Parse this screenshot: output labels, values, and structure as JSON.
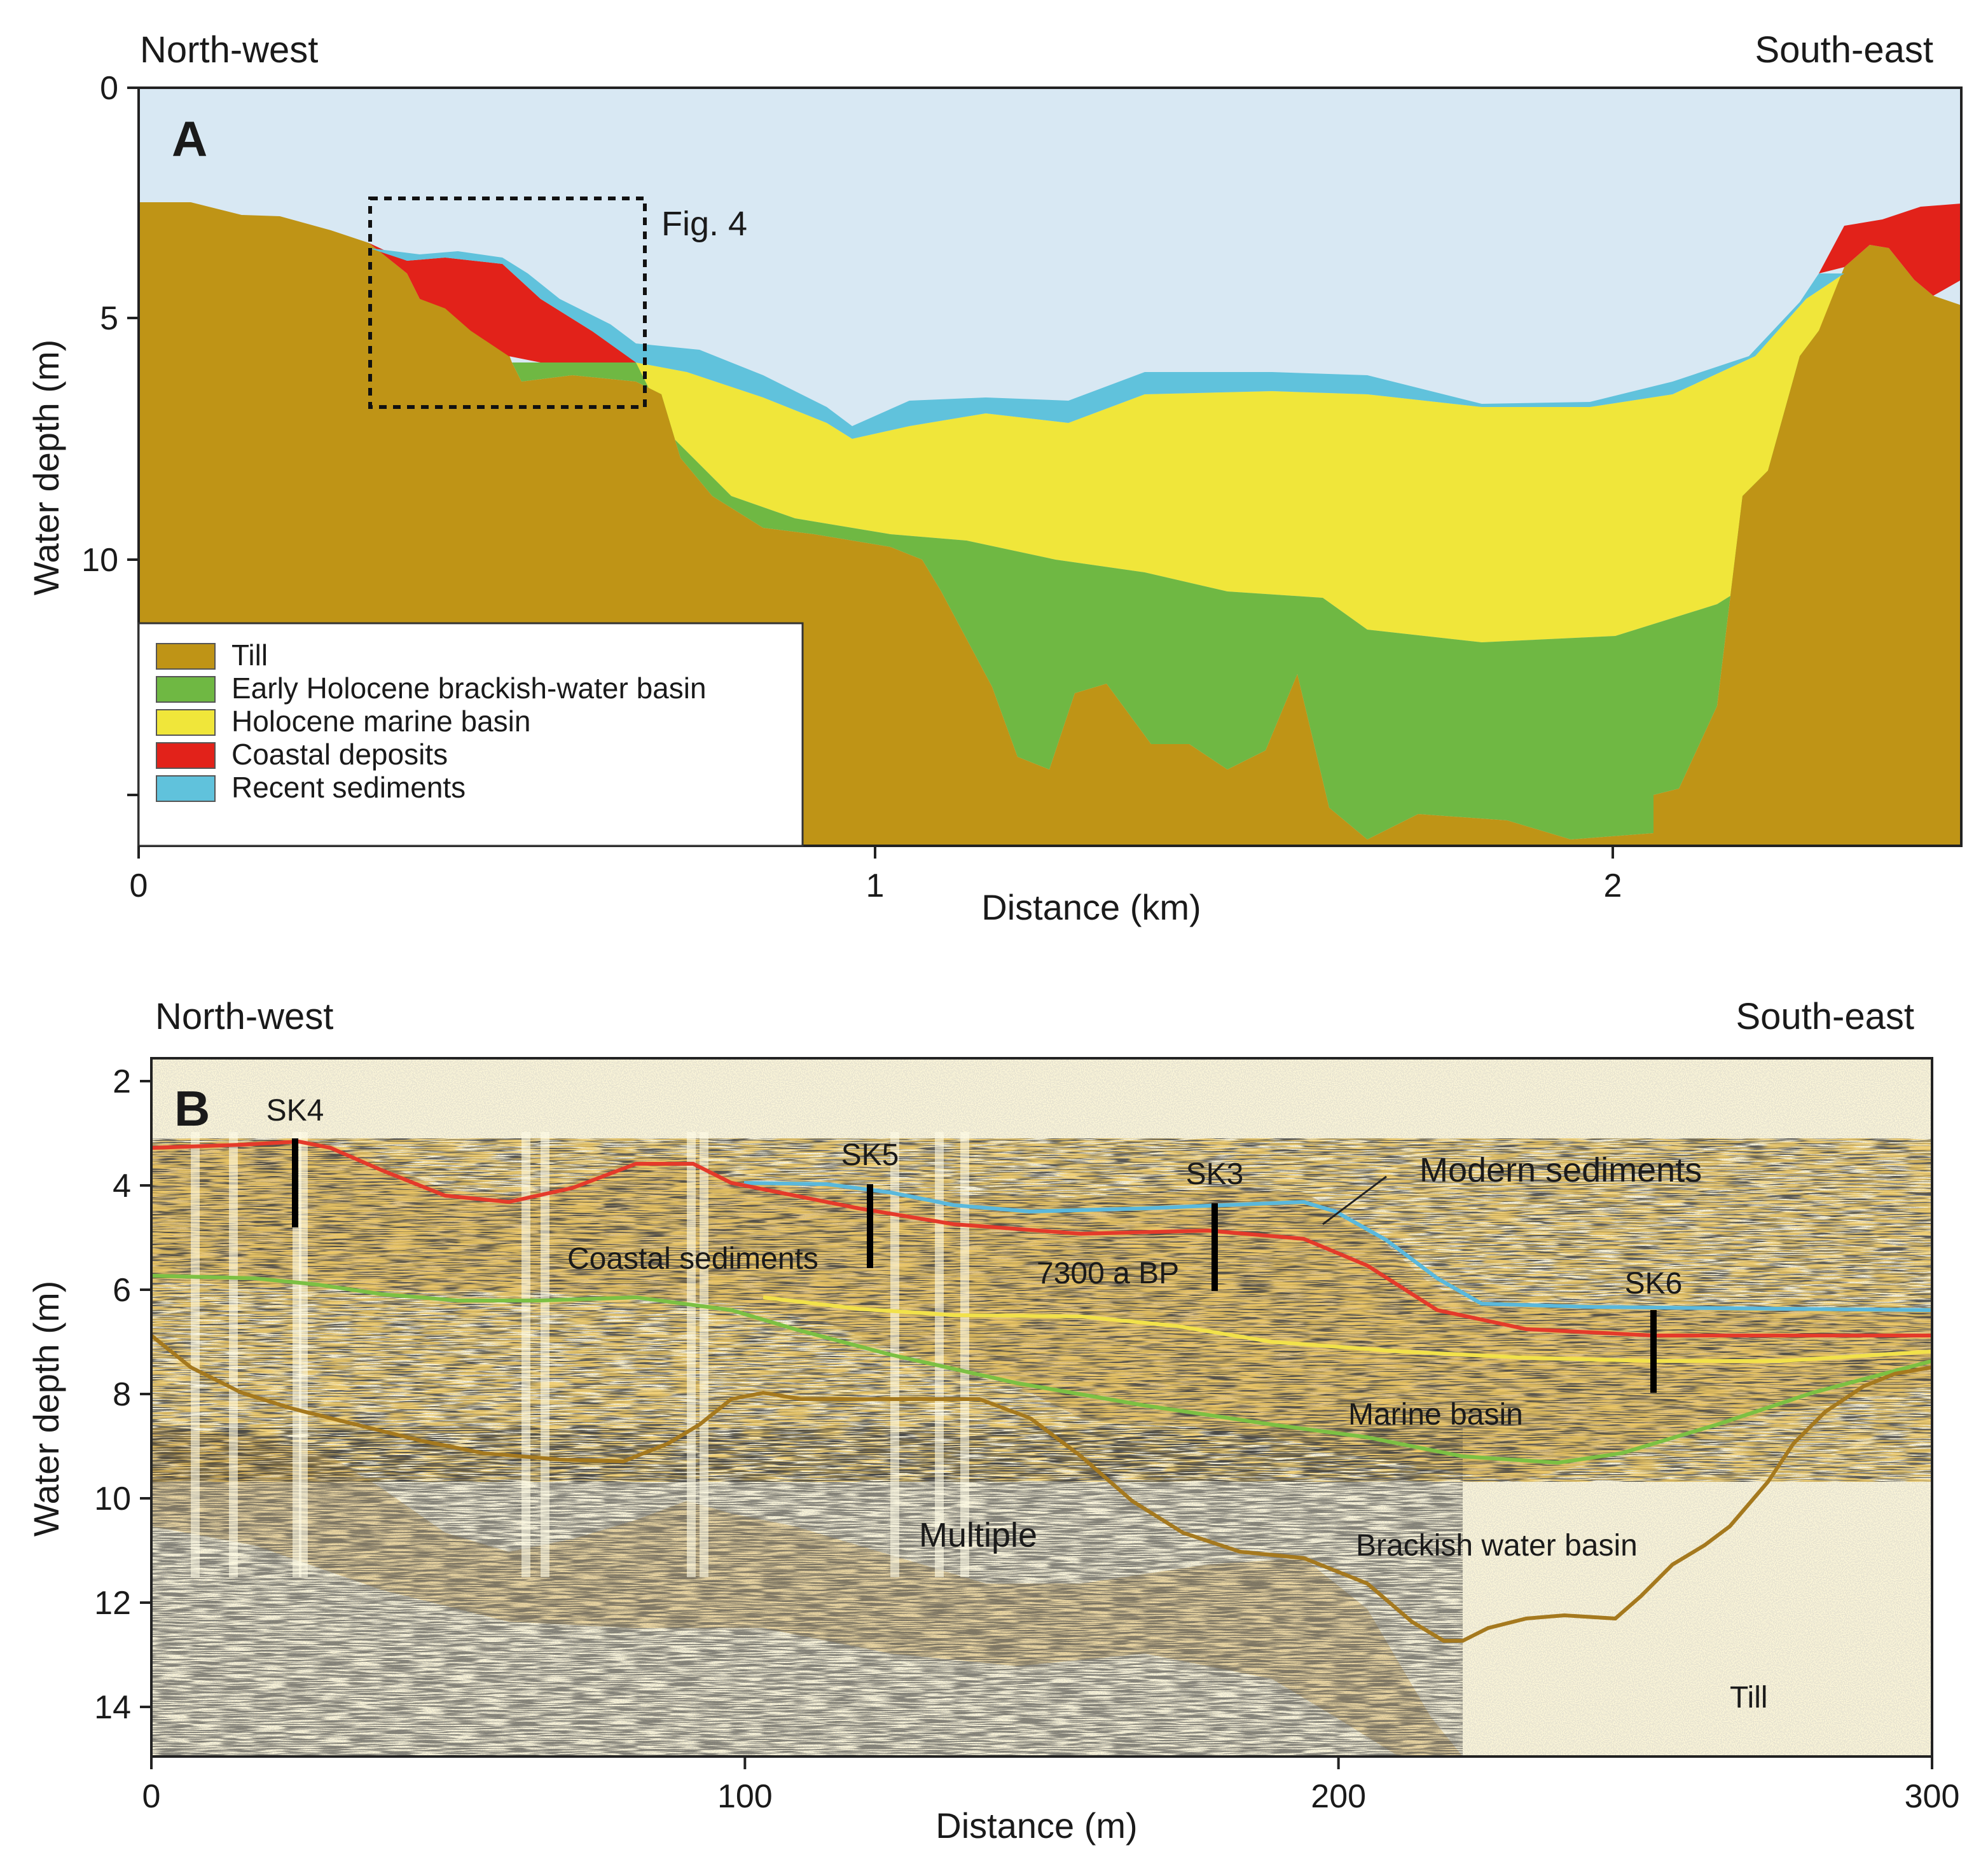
{
  "panel_a": {
    "label": "A",
    "direction_left": "North-west",
    "direction_right": "South-east",
    "inset_label": "Fig. 4",
    "y_axis_title": "Water depth (m)",
    "x_axis_title": "Distance (km)",
    "y_ticks": [
      "0",
      "5",
      "10"
    ],
    "x_ticks": [
      "0",
      "1",
      "2"
    ],
    "colors": {
      "water": "#d8e8f3",
      "till": "#bf9416",
      "brackish": "#6fb843",
      "marine": "#f0e63a",
      "coastal": "#e2221a",
      "recent": "#60c2dc"
    },
    "legend": [
      {
        "label": "Till",
        "color": "#bf9416"
      },
      {
        "label": "Early Holocene brackish-water basin",
        "color": "#6fb843"
      },
      {
        "label": "Holocene marine basin",
        "color": "#f0e63a"
      },
      {
        "label": "Coastal deposits",
        "color": "#e2221a"
      },
      {
        "label": "Recent sediments",
        "color": "#60c2dc"
      }
    ]
  },
  "panel_b": {
    "label": "B",
    "direction_left": "North-west",
    "direction_right": "South-east",
    "y_axis_title": "Water depth (m)",
    "x_axis_title": "Distance (m)",
    "y_ticks": [
      "2",
      "4",
      "6",
      "8",
      "10",
      "12",
      "14"
    ],
    "x_ticks": [
      "0",
      "100",
      "200",
      "300"
    ],
    "cores": [
      "SK4",
      "SK5",
      "SK3",
      "SK6"
    ],
    "annotations": {
      "modern": "Modern sediments",
      "coastal": "Coastal sediments",
      "date": "7300 a BP",
      "marine": "Marine basin",
      "multiple": "Multiple",
      "brackish": "Brackish water basin",
      "till": "Till"
    },
    "line_colors": {
      "modern": "#5ab8dc",
      "coastal": "#e43a2a",
      "marine": "#f2e24a",
      "brackish": "#7cc043",
      "till": "#a5791e"
    }
  }
}
